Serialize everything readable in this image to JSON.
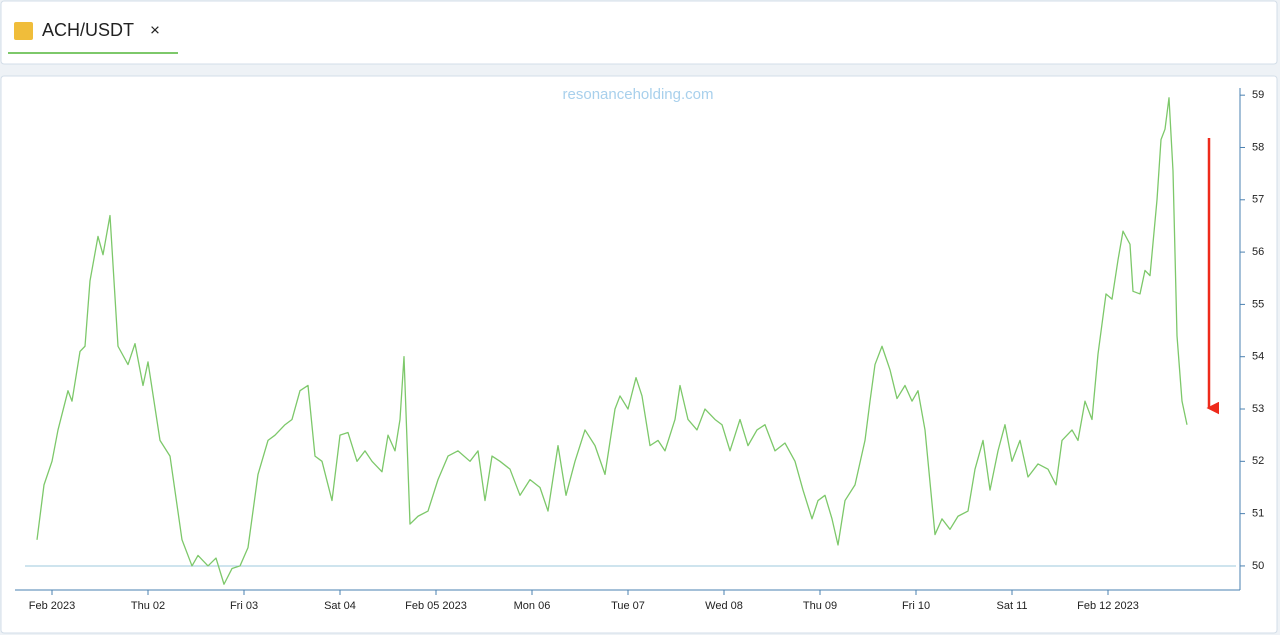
{
  "chart_data": {
    "type": "line",
    "watermark": "resonanceholding.com",
    "close_label": "×",
    "x": [
      -3.75,
      -2,
      0,
      1.5,
      4,
      5,
      7,
      8.25,
      9.5,
      11.5,
      12.75,
      14.5,
      16.5,
      19,
      20.75,
      22.75,
      24,
      27,
      29.5,
      32.5,
      35,
      36.5,
      39,
      41,
      43,
      45,
      47,
      49,
      51.5,
      54,
      55.75,
      58.25,
      60,
      62,
      64,
      65.75,
      67.5,
      70,
      72,
      74,
      76.25,
      78.25,
      80,
      82.5,
      84,
      85.75,
      87,
      88,
      89.5,
      91.5,
      94,
      96.5,
      99,
      101.5,
      104.5,
      106.5,
      108.25,
      110,
      112,
      114.5,
      117,
      119.5,
      122,
      124,
      126.5,
      128.5,
      130.75,
      133.25,
      135.75,
      138.25,
      140.75,
      142,
      144,
      146,
      147.5,
      149.5,
      151.5,
      153.25,
      155.75,
      157,
      159,
      161.25,
      163.25,
      165.75,
      167.5,
      169.5,
      172,
      174,
      176.25,
      178.25,
      180.75,
      183.25,
      185.75,
      187.75,
      190,
      191.5,
      193.25,
      195,
      196.5,
      198.25,
      200.75,
      203.25,
      204.5,
      205.75,
      207.5,
      209.5,
      211.25,
      213.25,
      215,
      216.5,
      218.25,
      220.75,
      222.5,
      224.5,
      226.5,
      229,
      230.75,
      232.75,
      234.5,
      236.5,
      238.25,
      240,
      242,
      244,
      246.5,
      249,
      251,
      252.5,
      255,
      256.5,
      258.25,
      260,
      261.5,
      263.5,
      265,
      266.5,
      267.75,
      269.5,
      270.25,
      272,
      273.25,
      274.5,
      276.25,
      277.25,
      278.25,
      279.25,
      280.25,
      281.25,
      282.5,
      283.75
    ],
    "series": [
      {
        "name": "ACH/USDT",
        "color": "#7dc86a",
        "values": [
          50.5,
          51.55,
          52.0,
          52.6,
          53.35,
          53.15,
          54.1,
          54.2,
          55.45,
          56.3,
          55.95,
          56.7,
          54.2,
          53.85,
          54.25,
          53.45,
          53.9,
          52.4,
          52.1,
          50.5,
          50.0,
          50.2,
          50.0,
          50.15,
          49.65,
          49.95,
          50.0,
          50.35,
          51.75,
          52.4,
          52.5,
          52.7,
          52.8,
          53.35,
          53.45,
          52.1,
          52.0,
          51.25,
          52.5,
          52.55,
          52.0,
          52.2,
          52.0,
          51.8,
          52.5,
          52.2,
          52.8,
          54.0,
          50.8,
          50.95,
          51.05,
          51.65,
          52.1,
          52.2,
          52.0,
          52.2,
          51.25,
          52.1,
          52.0,
          51.85,
          51.35,
          51.65,
          51.5,
          51.05,
          52.3,
          51.35,
          52.0,
          52.6,
          52.3,
          51.75,
          53.0,
          53.25,
          53.0,
          53.6,
          53.25,
          52.3,
          52.4,
          52.2,
          52.8,
          53.45,
          52.8,
          52.6,
          53.0,
          52.8,
          52.7,
          52.2,
          52.8,
          52.3,
          52.6,
          52.7,
          52.2,
          52.35,
          52.0,
          51.45,
          50.9,
          51.25,
          51.35,
          50.9,
          50.4,
          51.25,
          51.55,
          52.4,
          53.15,
          53.85,
          54.2,
          53.75,
          53.2,
          53.45,
          53.15,
          53.35,
          52.6,
          50.6,
          50.9,
          50.7,
          50.95,
          51.05,
          51.85,
          52.4,
          51.45,
          52.2,
          52.7,
          52.0,
          52.4,
          51.7,
          51.95,
          51.85,
          51.55,
          52.4,
          52.6,
          52.4,
          53.15,
          52.8,
          54.05,
          55.2,
          55.1,
          55.85,
          56.4,
          56.15,
          55.25,
          55.2,
          55.65,
          55.55,
          57.0,
          58.15,
          58.35,
          58.95,
          57.55,
          54.4,
          53.15,
          52.7
        ]
      }
    ],
    "reference_line": 50,
    "reference_color": "#9cc8dd",
    "xlim": [
      -9.25,
      297
    ],
    "xticks": [
      {
        "value": 0,
        "label": "Feb 2023"
      },
      {
        "value": 24,
        "label": "Thu 02"
      },
      {
        "value": 48,
        "label": "Fri 03"
      },
      {
        "value": 72,
        "label": "Sat 04"
      },
      {
        "value": 96,
        "label": "Feb 05 2023"
      },
      {
        "value": 120,
        "label": "Mon 06"
      },
      {
        "value": 144,
        "label": "Tue 07"
      },
      {
        "value": 168,
        "label": "Wed 08"
      },
      {
        "value": 192,
        "label": "Thu 09"
      },
      {
        "value": 216,
        "label": "Fri 10"
      },
      {
        "value": 240,
        "label": "Sat 11"
      },
      {
        "value": 264,
        "label": "Feb 12 2023"
      }
    ],
    "ylim": [
      49.54,
      59.29
    ],
    "yticks": [
      50,
      51,
      52,
      53,
      54,
      55,
      56,
      57,
      58,
      59
    ],
    "grid": false
  }
}
